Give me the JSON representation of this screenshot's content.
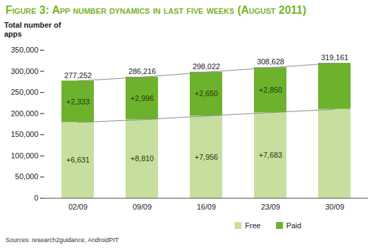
{
  "chart_data": {
    "type": "bar",
    "title": "Figure 3: App number dynamics in last five weeks (August 2011)",
    "y_label": "Total number of apps",
    "source": "Sources: research2guidance, AndroidPIT",
    "categories": [
      "02/09",
      "09/09",
      "16/09",
      "23/09",
      "30/09"
    ],
    "series": [
      {
        "name": "Free",
        "color": "#c6df9f",
        "values": [
          179000,
          185631,
          194441,
          202397,
          210080
        ],
        "changes": [
          6631,
          8810,
          7956,
          7683,
          null
        ],
        "change_labels": [
          "+6,631",
          "+8,810",
          "+7,956",
          "+7,683",
          null
        ]
      },
      {
        "name": "Paid",
        "color": "#6db22c",
        "values": [
          98252,
          100585,
          103581,
          106231,
          109081
        ],
        "changes": [
          2333,
          2996,
          2650,
          2850,
          null
        ],
        "change_labels": [
          "+2,333",
          "+2,996",
          "+2,650",
          "+2,850",
          null
        ]
      }
    ],
    "totals": [
      277252,
      286216,
      298022,
      308628,
      319161
    ],
    "total_labels": [
      "277,252",
      "286,216",
      "298,022",
      "308,628",
      "319,161"
    ],
    "stacked": true,
    "ylim": [
      0,
      350000
    ],
    "yticks": [
      0,
      {
        "value": 50000,
        "label": "50,000"
      },
      {
        "value": 100000,
        "label": "100,000"
      },
      {
        "value": 150000,
        "label": "150,000"
      },
      {
        "value": 200000,
        "label": "200,000"
      },
      {
        "value": 250000,
        "label": "250,000"
      },
      {
        "value": 300000,
        "label": "300,000"
      },
      {
        "value": 350000,
        "label": "350,000"
      }
    ],
    "grid": false,
    "legend": "bottom"
  }
}
